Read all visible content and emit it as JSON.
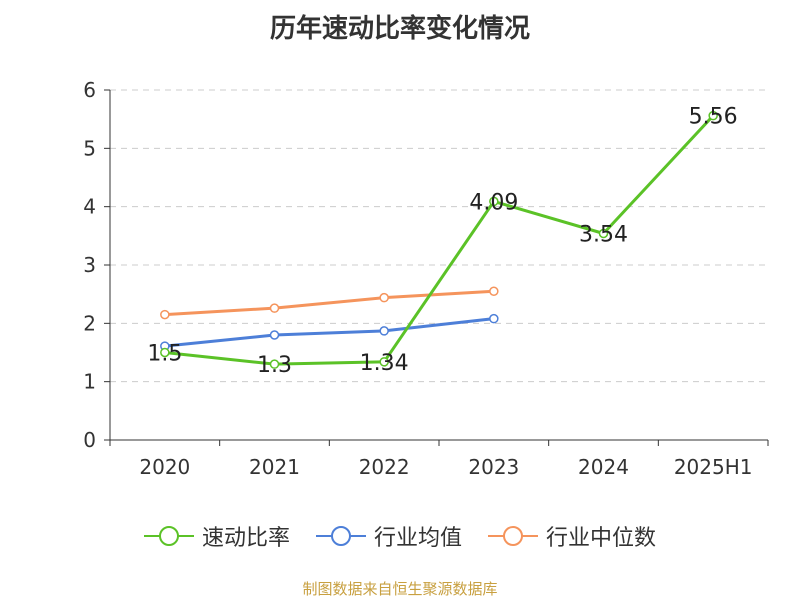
{
  "chart_data": {
    "type": "line",
    "title": "历年速动比率变化情况",
    "categories": [
      "2020",
      "2021",
      "2022",
      "2023",
      "2024",
      "2025H1"
    ],
    "ylim": [
      0,
      6
    ],
    "yticks": [
      0,
      1,
      2,
      3,
      4,
      5,
      6
    ],
    "grid": true,
    "legend_position": "bottom",
    "series": [
      {
        "name": "速动比率",
        "color": "#5bc227",
        "values": [
          1.5,
          1.3,
          1.34,
          4.09,
          3.54,
          5.56
        ],
        "labels": [
          "1.5",
          "1.3",
          "1.34",
          "4.09",
          "3.54",
          "5.56"
        ],
        "show_labels": true
      },
      {
        "name": "行业均值",
        "color": "#4d7fd8",
        "values": [
          1.61,
          1.8,
          1.87,
          2.08,
          null,
          null
        ],
        "show_labels": false
      },
      {
        "name": "行业中位数",
        "color": "#f5945c",
        "values": [
          2.15,
          2.26,
          2.44,
          2.55,
          null,
          null
        ],
        "show_labels": false
      }
    ]
  },
  "source": "制图数据来自恒生聚源数据库"
}
